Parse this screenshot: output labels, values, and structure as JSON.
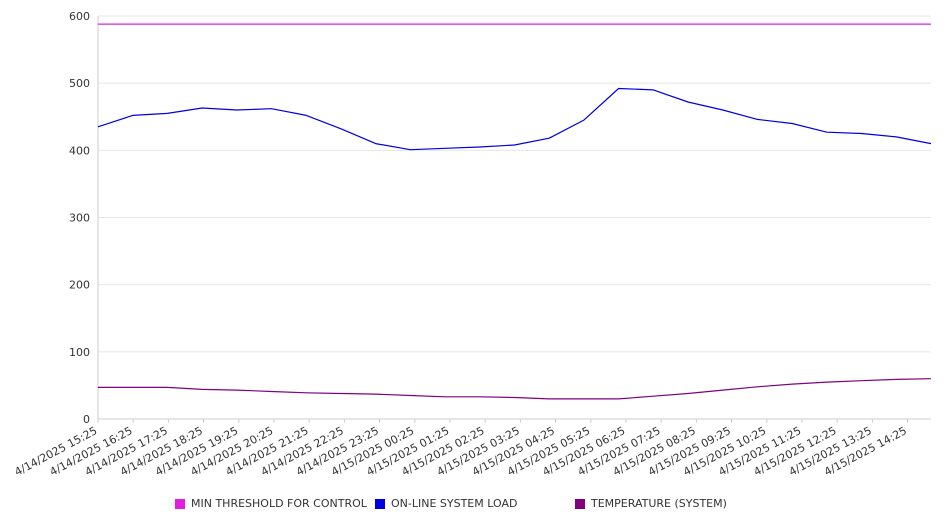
{
  "chart_data": {
    "type": "line",
    "ylim": [
      0,
      600
    ],
    "yticks": [
      0,
      100,
      200,
      300,
      400,
      500,
      600
    ],
    "x_ticks": [
      "4/14/2025 15:25",
      "4/14/2025 16:25",
      "4/14/2025 17:25",
      "4/14/2025 18:25",
      "4/14/2025 19:25",
      "4/14/2025 20:25",
      "4/14/2025 21:25",
      "4/14/2025 22:25",
      "4/14/2025 23:25",
      "4/15/2025 00:25",
      "4/15/2025 01:25",
      "4/15/2025 02:25",
      "4/15/2025 03:25",
      "4/15/2025 04:25",
      "4/15/2025 05:25",
      "4/15/2025 06:25",
      "4/15/2025 07:25",
      "4/15/2025 08:25",
      "4/15/2025 09:25",
      "4/15/2025 10:25",
      "4/15/2025 11:25",
      "4/15/2025 12:25",
      "4/15/2025 13:25",
      "4/15/2025 14:25"
    ],
    "grid": true,
    "legend_position": "bottom",
    "series": [
      {
        "name": "MIN THRESHOLD FOR CONTROL",
        "color": "#e020e0",
        "values": [
          588,
          588,
          588,
          588,
          588,
          588,
          588,
          588,
          588,
          588,
          588,
          588,
          588,
          588,
          588,
          588,
          588,
          588,
          588,
          588,
          588,
          588,
          588,
          588,
          588
        ]
      },
      {
        "name": "ON-LINE SYSTEM LOAD",
        "color": "#0000e0",
        "values": [
          435,
          452,
          455,
          463,
          460,
          462,
          452,
          432,
          410,
          401,
          403,
          405,
          408,
          418,
          445,
          492,
          490,
          472,
          460,
          446,
          440,
          427,
          425,
          420,
          410
        ]
      },
      {
        "name": "TEMPERATURE (SYSTEM)",
        "color": "#800080",
        "values": [
          47,
          47,
          47,
          44,
          43,
          41,
          39,
          38,
          37,
          35,
          33,
          33,
          32,
          30,
          30,
          30,
          34,
          38,
          43,
          48,
          52,
          55,
          57,
          59,
          60
        ]
      }
    ]
  }
}
